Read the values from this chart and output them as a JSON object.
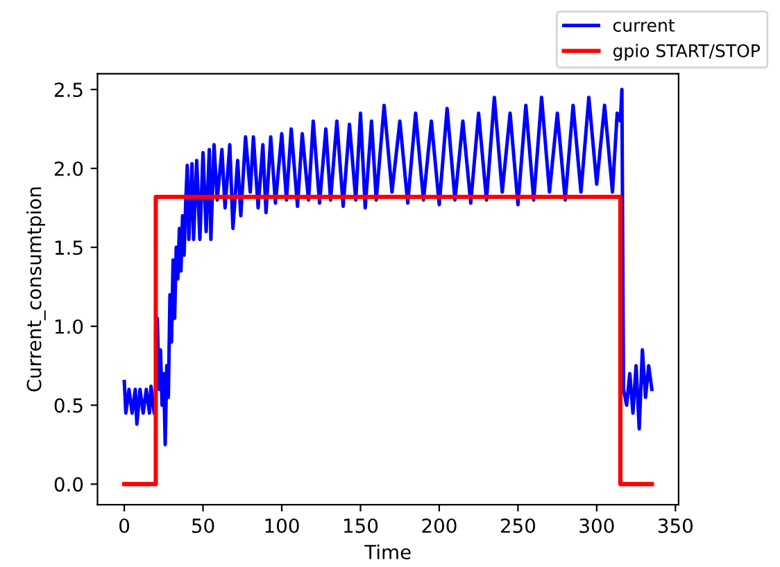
{
  "chart_data": {
    "type": "line",
    "xlabel": "Time",
    "ylabel": "Current_consumtpion",
    "xlim": [
      -17,
      352
    ],
    "ylim": [
      -0.13,
      2.6
    ],
    "xticks": [
      0,
      50,
      100,
      150,
      200,
      250,
      300,
      350
    ],
    "yticks": [
      {
        "value": 0,
        "label": "0.0"
      },
      0.5,
      {
        "value": 1,
        "label": "1.0"
      },
      1.5,
      {
        "value": 2,
        "label": "2.0"
      },
      2.5
    ],
    "legend": "top right",
    "grid": false,
    "series": [
      {
        "name": "current",
        "color": "#0000ff",
        "x": [
          0,
          1,
          3,
          5,
          7,
          8,
          10,
          12,
          14,
          16,
          17,
          19,
          20,
          21,
          22,
          23,
          24,
          25,
          26,
          27,
          28,
          29,
          30,
          31,
          32,
          33,
          34,
          35,
          36,
          37,
          38,
          39,
          40,
          41,
          43,
          44,
          46,
          48,
          50,
          52,
          54,
          55,
          57,
          59,
          62,
          64,
          67,
          69,
          72,
          74,
          77,
          80,
          82,
          85,
          88,
          90,
          93,
          96,
          100,
          103,
          106,
          110,
          113,
          117,
          120,
          124,
          128,
          131,
          135,
          139,
          143,
          147,
          150,
          153,
          157,
          160,
          165,
          170,
          175,
          180,
          185,
          190,
          195,
          200,
          205,
          210,
          215,
          220,
          225,
          230,
          235,
          240,
          245,
          250,
          255,
          260,
          265,
          270,
          275,
          280,
          285,
          290,
          295,
          300,
          305,
          310,
          313,
          315,
          316,
          317,
          319,
          321,
          323,
          325,
          327,
          329,
          331,
          333,
          335
        ],
        "values": [
          0.65,
          0.45,
          0.6,
          0.45,
          0.6,
          0.38,
          0.6,
          0.45,
          0.6,
          0.45,
          0.62,
          0.45,
          0.55,
          1.05,
          0.6,
          0.85,
          0.5,
          0.7,
          0.25,
          0.75,
          0.55,
          1.2,
          0.9,
          1.42,
          1.05,
          1.5,
          1.3,
          1.62,
          1.35,
          1.7,
          1.45,
          1.78,
          2.02,
          1.55,
          2.03,
          1.55,
          2.05,
          1.55,
          2.1,
          1.6,
          2.12,
          1.55,
          2.15,
          1.8,
          2.12,
          1.75,
          2.15,
          1.62,
          2.05,
          1.7,
          2.2,
          1.85,
          2.2,
          1.75,
          2.15,
          1.72,
          2.2,
          1.78,
          2.22,
          1.8,
          2.25,
          1.76,
          2.22,
          1.8,
          2.3,
          1.78,
          2.25,
          1.8,
          2.3,
          1.76,
          2.28,
          1.8,
          2.35,
          1.75,
          2.3,
          1.8,
          2.4,
          1.85,
          2.3,
          1.78,
          2.35,
          1.8,
          2.3,
          1.77,
          2.38,
          1.8,
          2.3,
          1.78,
          2.35,
          1.8,
          2.45,
          1.85,
          2.35,
          1.77,
          2.4,
          1.8,
          2.45,
          1.85,
          2.35,
          1.8,
          2.4,
          1.85,
          2.45,
          1.9,
          2.4,
          1.85,
          2.35,
          2.3,
          2.5,
          0.6,
          0.5,
          0.7,
          0.45,
          0.75,
          0.35,
          0.85,
          0.55,
          0.75,
          0.6
        ]
      },
      {
        "name": "gpio START/STOP",
        "color": "#ff0000",
        "x": [
          0,
          20,
          20,
          315,
          315,
          335
        ],
        "values": [
          0.0,
          0.0,
          1.82,
          1.82,
          0.0,
          0.0
        ]
      }
    ]
  }
}
